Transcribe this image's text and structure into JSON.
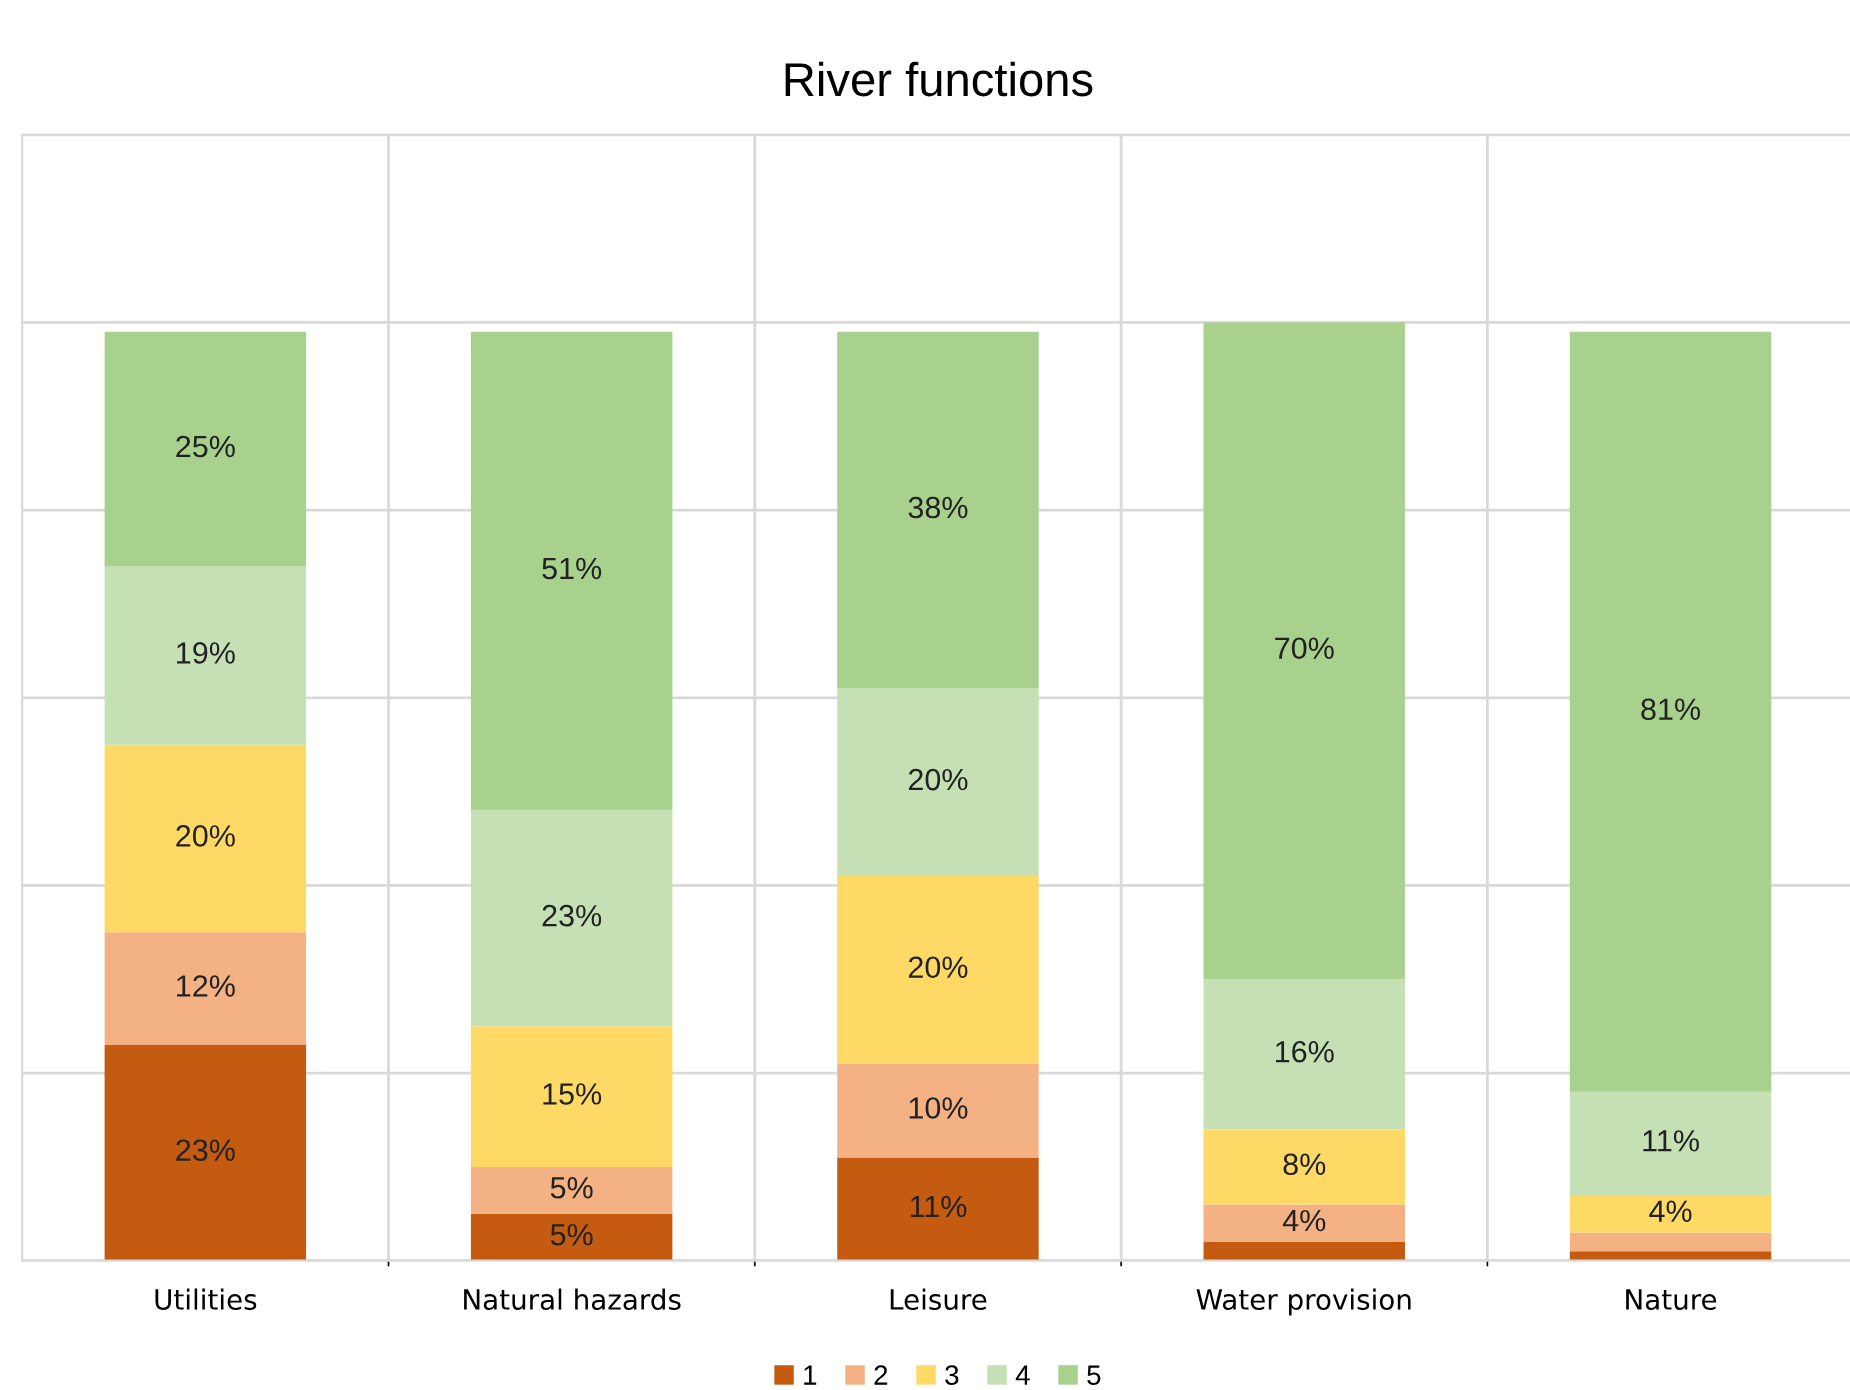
{
  "chart_data": {
    "type": "bar",
    "stacked": true,
    "title": "River functions",
    "categories": [
      "Utilities",
      "Natural hazards",
      "Leisure",
      "Water provision",
      "Nature"
    ],
    "series": [
      {
        "name": "1",
        "color": "#c55a11",
        "values": [
          23,
          5,
          11,
          2,
          1
        ],
        "value_labels": [
          "23%",
          "5%",
          "11%",
          null,
          null
        ]
      },
      {
        "name": "2",
        "color": "#f4b183",
        "values": [
          12,
          5,
          10,
          4,
          2
        ],
        "value_labels": [
          "12%",
          "5%",
          "10%",
          "4%",
          null
        ]
      },
      {
        "name": "3",
        "color": "#ffd966",
        "values": [
          20,
          15,
          20,
          8,
          4
        ],
        "value_labels": [
          "20%",
          "15%",
          "20%",
          "8%",
          "4%"
        ]
      },
      {
        "name": "4",
        "color": "#c5e0b4",
        "values": [
          19,
          23,
          20,
          16,
          11
        ],
        "value_labels": [
          "19%",
          "23%",
          "20%",
          "16%",
          "11%"
        ]
      },
      {
        "name": "5",
        "color": "#a9d18e",
        "values": [
          25,
          51,
          38,
          70,
          81
        ],
        "value_labels": [
          "25%",
          "51%",
          "38%",
          "70%",
          "81%"
        ]
      }
    ],
    "ylim": [
      0,
      120
    ],
    "yticks": [
      {
        "value": 0,
        "label": null
      },
      {
        "value": 20,
        "label": null
      },
      {
        "value": 40,
        "label": null
      },
      {
        "value": 60,
        "label": null
      },
      {
        "value": 80,
        "label": null
      },
      {
        "value": 100,
        "label": null
      },
      {
        "value": 120,
        "label": null
      }
    ],
    "tick_labels": "x",
    "grid": true,
    "legend": "bottom"
  }
}
